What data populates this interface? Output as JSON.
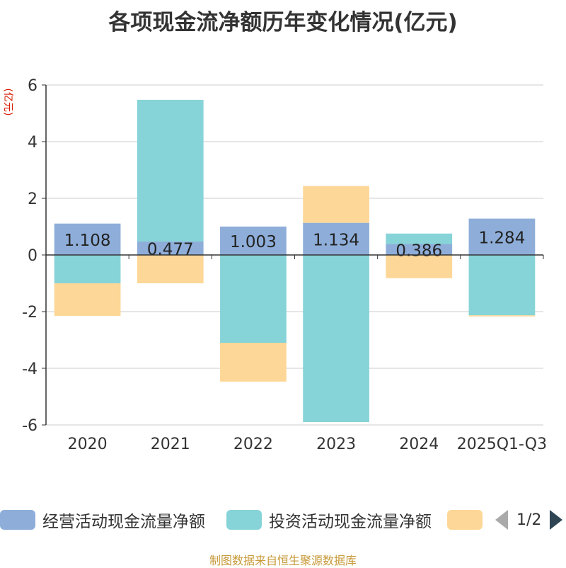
{
  "title": "各项现金流净额历年变化情况(亿元)",
  "unit_label": "(亿元)",
  "footer": "制图数据来自恒生聚源数据库",
  "legend_pager": {
    "text": "1/2"
  },
  "colors": {
    "operating": "#8eaed9",
    "investing": "#86d4d8",
    "financing": "#fdd797",
    "grid": "#cccccc",
    "axis": "#333333"
  },
  "chart_data": {
    "type": "bar",
    "stacked": true,
    "title": "各项现金流净额历年变化情况(亿元)",
    "ylabel": "(亿元)",
    "ylim": [
      -6,
      6
    ],
    "yticks": [
      6,
      4,
      2,
      0,
      -2,
      -4,
      -6
    ],
    "grid": true,
    "legend_position": "bottom",
    "categories": [
      "2020",
      "2021",
      "2022",
      "2023",
      "2024",
      "2025Q1-Q3"
    ],
    "series": [
      {
        "name": "经营活动现金流量净额",
        "values": [
          1.108,
          0.477,
          1.003,
          1.134,
          0.386,
          1.284
        ],
        "labels": [
          "1.108",
          "0.477",
          "1.003",
          "1.134",
          "0.386",
          "1.284"
        ]
      },
      {
        "name": "投资活动现金流量净额",
        "values": [
          -1.0,
          5.0,
          -3.1,
          -5.9,
          0.37,
          -2.13
        ]
      },
      {
        "name": "",
        "values": [
          -1.15,
          -1.0,
          -1.37,
          1.3,
          -0.82,
          -0.04
        ]
      }
    ]
  }
}
